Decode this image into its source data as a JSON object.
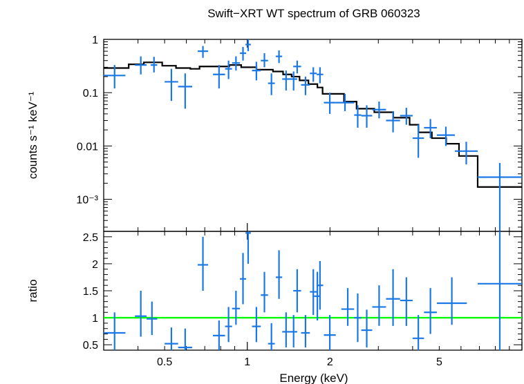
{
  "chart_data": {
    "type": "scatter",
    "title": "Swift−XRT WT spectrum of GRB 060323",
    "xlabel": "Energy (keV)",
    "x_scale": "log",
    "xlim": [
      0.3,
      10
    ],
    "x_ticks": [
      {
        "v": 0.5,
        "label": "0.5"
      },
      {
        "v": 1,
        "label": "1"
      },
      {
        "v": 2,
        "label": "2"
      },
      {
        "v": 5,
        "label": "5"
      }
    ],
    "colors": {
      "data": "#1a78e6",
      "model": "#000000",
      "unity": "#00ff00"
    },
    "top": {
      "ylabel": "counts s⁻¹ keV⁻¹",
      "y_scale": "log",
      "ylim": [
        0.00025,
        1
      ],
      "y_ticks": [
        {
          "v": 1,
          "label": "1"
        },
        {
          "v": 0.1,
          "label": "0.1"
        },
        {
          "v": 0.01,
          "label": "0.01"
        },
        {
          "v": 0.001,
          "label": "10⁻³"
        }
      ],
      "data": [
        {
          "x0": 0.3,
          "x1": 0.36,
          "y": 0.21,
          "ylo": 0.12,
          "yhi": 0.33
        },
        {
          "x0": 0.39,
          "x1": 0.43,
          "y": 0.33,
          "ylo": 0.22,
          "yhi": 0.48
        },
        {
          "x0": 0.445,
          "x1": 0.47,
          "y": 0.33,
          "ylo": 0.24,
          "yhi": 0.47
        },
        {
          "x0": 0.5,
          "x1": 0.56,
          "y": 0.16,
          "ylo": 0.07,
          "yhi": 0.28
        },
        {
          "x0": 0.56,
          "x1": 0.63,
          "y": 0.13,
          "ylo": 0.05,
          "yhi": 0.23
        },
        {
          "x0": 0.66,
          "x1": 0.72,
          "y": 0.6,
          "ylo": 0.45,
          "yhi": 0.75
        },
        {
          "x0": 0.75,
          "x1": 0.83,
          "y": 0.22,
          "ylo": 0.12,
          "yhi": 0.33
        },
        {
          "x0": 0.83,
          "x1": 0.88,
          "y": 0.28,
          "ylo": 0.18,
          "yhi": 0.4
        },
        {
          "x0": 0.88,
          "x1": 0.94,
          "y": 0.36,
          "ylo": 0.26,
          "yhi": 0.48
        },
        {
          "x0": 0.94,
          "x1": 0.99,
          "y": 0.55,
          "ylo": 0.4,
          "yhi": 0.72
        },
        {
          "x0": 0.985,
          "x1": 1.03,
          "y": 0.8,
          "ylo": 0.6,
          "yhi": 1.0
        },
        {
          "x0": 1.04,
          "x1": 1.12,
          "y": 0.26,
          "ylo": 0.17,
          "yhi": 0.38
        },
        {
          "x0": 1.12,
          "x1": 1.19,
          "y": 0.4,
          "ylo": 0.3,
          "yhi": 0.55
        },
        {
          "x0": 1.19,
          "x1": 1.26,
          "y": 0.15,
          "ylo": 0.09,
          "yhi": 0.23
        },
        {
          "x0": 1.27,
          "x1": 1.34,
          "y": 0.48,
          "ylo": 0.36,
          "yhi": 0.62
        },
        {
          "x0": 1.34,
          "x1": 1.43,
          "y": 0.18,
          "ylo": 0.11,
          "yhi": 0.26
        },
        {
          "x0": 1.43,
          "x1": 1.52,
          "y": 0.18,
          "ylo": 0.11,
          "yhi": 0.25
        },
        {
          "x0": 1.47,
          "x1": 1.57,
          "y": 0.31,
          "ylo": 0.23,
          "yhi": 0.4
        },
        {
          "x0": 1.57,
          "x1": 1.69,
          "y": 0.14,
          "ylo": 0.09,
          "yhi": 0.2
        },
        {
          "x0": 1.69,
          "x1": 1.79,
          "y": 0.23,
          "ylo": 0.16,
          "yhi": 0.3
        },
        {
          "x0": 1.79,
          "x1": 1.89,
          "y": 0.22,
          "ylo": 0.15,
          "yhi": 0.3
        },
        {
          "x0": 1.9,
          "x1": 2.1,
          "y": 0.065,
          "ylo": 0.04,
          "yhi": 0.1
        },
        {
          "x0": 2.1,
          "x1": 2.45,
          "y": 0.065,
          "ylo": 0.045,
          "yhi": 0.095
        },
        {
          "x0": 2.45,
          "x1": 2.6,
          "y": 0.038,
          "ylo": 0.022,
          "yhi": 0.058
        },
        {
          "x0": 2.6,
          "x1": 2.85,
          "y": 0.037,
          "ylo": 0.022,
          "yhi": 0.058
        },
        {
          "x0": 2.85,
          "x1": 3.2,
          "y": 0.048,
          "ylo": 0.033,
          "yhi": 0.068
        },
        {
          "x0": 3.2,
          "x1": 3.6,
          "y": 0.03,
          "ylo": 0.018,
          "yhi": 0.045
        },
        {
          "x0": 3.6,
          "x1": 4.0,
          "y": 0.037,
          "ylo": 0.025,
          "yhi": 0.052
        },
        {
          "x0": 4.0,
          "x1": 4.4,
          "y": 0.014,
          "ylo": 0.006,
          "yhi": 0.025
        },
        {
          "x0": 4.4,
          "x1": 4.9,
          "y": 0.022,
          "ylo": 0.014,
          "yhi": 0.032
        },
        {
          "x0": 4.9,
          "x1": 5.7,
          "y": 0.016,
          "ylo": 0.01,
          "yhi": 0.023
        },
        {
          "x0": 5.7,
          "x1": 6.9,
          "y": 0.008,
          "ylo": 0.0045,
          "yhi": 0.012
        },
        {
          "x0": 6.9,
          "x1": 10.0,
          "y": 0.0026,
          "ylo": 0.00025,
          "yhi": 0.0048
        }
      ],
      "model": [
        {
          "x0": 0.3,
          "x1": 0.37,
          "y": 0.29
        },
        {
          "x0": 0.37,
          "x1": 0.42,
          "y": 0.34
        },
        {
          "x0": 0.42,
          "x1": 0.49,
          "y": 0.37
        },
        {
          "x0": 0.49,
          "x1": 0.55,
          "y": 0.32
        },
        {
          "x0": 0.55,
          "x1": 0.62,
          "y": 0.29
        },
        {
          "x0": 0.62,
          "x1": 0.67,
          "y": 0.28
        },
        {
          "x0": 0.67,
          "x1": 0.86,
          "y": 0.31
        },
        {
          "x0": 0.86,
          "x1": 0.95,
          "y": 0.33
        },
        {
          "x0": 0.95,
          "x1": 1.08,
          "y": 0.3
        },
        {
          "x0": 1.08,
          "x1": 1.24,
          "y": 0.27
        },
        {
          "x0": 1.24,
          "x1": 1.35,
          "y": 0.25
        },
        {
          "x0": 1.35,
          "x1": 1.45,
          "y": 0.22
        },
        {
          "x0": 1.45,
          "x1": 1.55,
          "y": 0.2
        },
        {
          "x0": 1.55,
          "x1": 1.67,
          "y": 0.17
        },
        {
          "x0": 1.67,
          "x1": 1.8,
          "y": 0.145
        },
        {
          "x0": 1.8,
          "x1": 1.88,
          "y": 0.125
        },
        {
          "x0": 1.88,
          "x1": 2.25,
          "y": 0.095
        },
        {
          "x0": 2.25,
          "x1": 2.5,
          "y": 0.068
        },
        {
          "x0": 2.5,
          "x1": 2.9,
          "y": 0.05
        },
        {
          "x0": 2.9,
          "x1": 3.4,
          "y": 0.043
        },
        {
          "x0": 3.4,
          "x1": 3.9,
          "y": 0.034
        },
        {
          "x0": 3.9,
          "x1": 4.2,
          "y": 0.025
        },
        {
          "x0": 4.2,
          "x1": 4.7,
          "y": 0.018
        },
        {
          "x0": 4.7,
          "x1": 5.3,
          "y": 0.014
        },
        {
          "x0": 5.3,
          "x1": 5.9,
          "y": 0.011
        },
        {
          "x0": 5.9,
          "x1": 6.9,
          "y": 0.0065
        },
        {
          "x0": 6.9,
          "x1": 10.0,
          "y": 0.0017
        }
      ]
    },
    "bottom": {
      "ylabel": "ratio",
      "y_scale": "linear",
      "ylim": [
        0.4,
        2.6
      ],
      "y_ticks": [
        {
          "v": 0.5,
          "label": "0.5"
        },
        {
          "v": 1,
          "label": "1"
        },
        {
          "v": 1.5,
          "label": "1.5"
        },
        {
          "v": 2,
          "label": "2"
        },
        {
          "v": 2.5,
          "label": "2.5"
        }
      ],
      "unity": 1,
      "data": [
        {
          "x0": 0.3,
          "x1": 0.36,
          "y": 0.72,
          "ylo": 0.4,
          "yhi": 1.1
        },
        {
          "x0": 0.39,
          "x1": 0.43,
          "y": 1.03,
          "ylo": 0.65,
          "yhi": 1.5
        },
        {
          "x0": 0.43,
          "x1": 0.47,
          "y": 0.98,
          "ylo": 0.68,
          "yhi": 1.3
        },
        {
          "x0": 0.5,
          "x1": 0.56,
          "y": 0.52,
          "ylo": 0.4,
          "yhi": 0.82
        },
        {
          "x0": 0.56,
          "x1": 0.63,
          "y": 0.45,
          "ylo": 0.4,
          "yhi": 0.8
        },
        {
          "x0": 0.66,
          "x1": 0.72,
          "y": 1.98,
          "ylo": 1.5,
          "yhi": 2.5
        },
        {
          "x0": 0.75,
          "x1": 0.83,
          "y": 0.67,
          "ylo": 0.4,
          "yhi": 0.95
        },
        {
          "x0": 0.83,
          "x1": 0.88,
          "y": 0.84,
          "ylo": 0.55,
          "yhi": 1.2
        },
        {
          "x0": 0.88,
          "x1": 0.94,
          "y": 1.17,
          "ylo": 0.87,
          "yhi": 1.5
        },
        {
          "x0": 0.94,
          "x1": 0.99,
          "y": 1.72,
          "ylo": 1.25,
          "yhi": 2.2
        },
        {
          "x0": 0.985,
          "x1": 1.03,
          "y": 2.57,
          "ylo": 2.0,
          "yhi": 2.6
        },
        {
          "x0": 1.04,
          "x1": 1.12,
          "y": 0.84,
          "ylo": 0.55,
          "yhi": 1.2
        },
        {
          "x0": 1.12,
          "x1": 1.19,
          "y": 1.42,
          "ylo": 1.1,
          "yhi": 1.85
        },
        {
          "x0": 1.19,
          "x1": 1.26,
          "y": 0.52,
          "ylo": 0.4,
          "yhi": 0.9
        },
        {
          "x0": 1.27,
          "x1": 1.34,
          "y": 1.75,
          "ylo": 1.35,
          "yhi": 2.25
        },
        {
          "x0": 1.34,
          "x1": 1.43,
          "y": 0.74,
          "ylo": 0.45,
          "yhi": 1.1
        },
        {
          "x0": 1.43,
          "x1": 1.52,
          "y": 0.74,
          "ylo": 0.45,
          "yhi": 1.05
        },
        {
          "x0": 1.47,
          "x1": 1.57,
          "y": 1.5,
          "ylo": 1.1,
          "yhi": 1.9
        },
        {
          "x0": 1.57,
          "x1": 1.69,
          "y": 0.72,
          "ylo": 0.45,
          "yhi": 1.05
        },
        {
          "x0": 1.69,
          "x1": 1.79,
          "y": 1.48,
          "ylo": 1.05,
          "yhi": 1.9
        },
        {
          "x0": 1.75,
          "x1": 1.85,
          "y": 1.4,
          "ylo": 0.95,
          "yhi": 1.85
        },
        {
          "x0": 1.79,
          "x1": 1.89,
          "y": 1.6,
          "ylo": 1.15,
          "yhi": 2.05
        },
        {
          "x0": 1.9,
          "x1": 2.1,
          "y": 0.68,
          "ylo": 0.4,
          "yhi": 1.05
        },
        {
          "x0": 2.2,
          "x1": 2.45,
          "y": 1.16,
          "ylo": 0.85,
          "yhi": 1.55
        },
        {
          "x0": 2.45,
          "x1": 2.6,
          "y": 1.0,
          "ylo": 0.55,
          "yhi": 1.45
        },
        {
          "x0": 2.6,
          "x1": 2.85,
          "y": 0.77,
          "ylo": 0.45,
          "yhi": 1.15
        },
        {
          "x0": 2.85,
          "x1": 3.2,
          "y": 1.2,
          "ylo": 0.85,
          "yhi": 1.6
        },
        {
          "x0": 3.2,
          "x1": 3.6,
          "y": 1.35,
          "ylo": 0.85,
          "yhi": 1.9
        },
        {
          "x0": 3.6,
          "x1": 4.0,
          "y": 1.32,
          "ylo": 0.85,
          "yhi": 1.75
        },
        {
          "x0": 4.0,
          "x1": 4.4,
          "y": 0.62,
          "ylo": 0.4,
          "yhi": 1.05
        },
        {
          "x0": 4.4,
          "x1": 4.9,
          "y": 1.1,
          "ylo": 0.7,
          "yhi": 1.55
        },
        {
          "x0": 4.9,
          "x1": 6.3,
          "y": 1.27,
          "ylo": 0.87,
          "yhi": 1.75
        },
        {
          "x0": 6.9,
          "x1": 10.0,
          "y": 1.63,
          "ylo": 0.4,
          "yhi": 2.6
        }
      ]
    }
  }
}
